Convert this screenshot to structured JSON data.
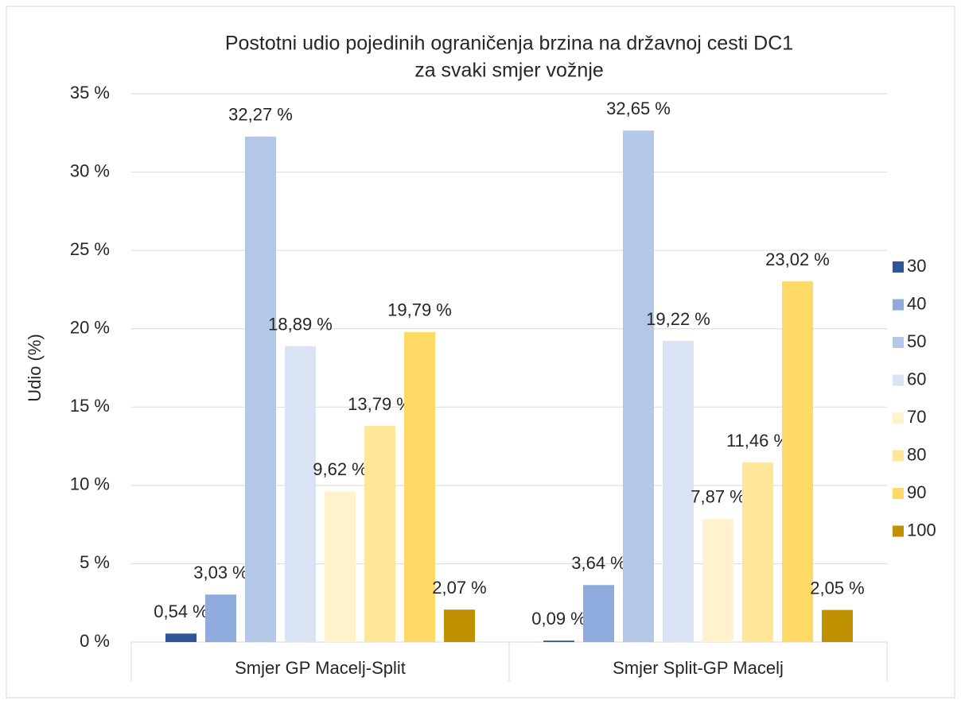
{
  "chart_data": {
    "type": "bar",
    "title": [
      "Postotni udio pojedinih ograničenja brzina na državnoj cesti DC1",
      "za svaki smjer vožnje"
    ],
    "y_label": "Udio (%)",
    "categories": [
      "Smjer GP Macelj-Split",
      "Smjer Split-GP Macelj"
    ],
    "series": [
      {
        "name": "30",
        "color": "#2f5597",
        "values": [
          0.54,
          0.09
        ],
        "value_labels": [
          "0,54 %",
          "0,09 %"
        ]
      },
      {
        "name": "40",
        "color": "#8faadc",
        "values": [
          3.03,
          3.64
        ],
        "value_labels": [
          "3,03 %",
          "3,64 %"
        ]
      },
      {
        "name": "50",
        "color": "#b4c7e7",
        "values": [
          32.27,
          32.65
        ],
        "value_labels": [
          "32,27 %",
          "32,65 %"
        ]
      },
      {
        "name": "60",
        "color": "#dae3f3",
        "values": [
          18.89,
          19.22
        ],
        "value_labels": [
          "18,89 %",
          "19,22 %"
        ]
      },
      {
        "name": "70",
        "color": "#fff2cc",
        "values": [
          9.62,
          7.87
        ],
        "value_labels": [
          "9,62 %",
          "7,87 %"
        ]
      },
      {
        "name": "80",
        "color": "#ffe699",
        "values": [
          13.79,
          11.46
        ],
        "value_labels": [
          "13,79 %",
          "11,46 %"
        ]
      },
      {
        "name": "90",
        "color": "#ffd966",
        "values": [
          19.79,
          23.02
        ],
        "value_labels": [
          "19,79 %",
          "23,02 %"
        ]
      },
      {
        "name": "100",
        "color": "#bf9000",
        "values": [
          2.07,
          2.05
        ],
        "value_labels": [
          "2,07 %",
          "2,05 %"
        ]
      }
    ],
    "ylim": [
      0,
      35
    ],
    "yticks": [
      {
        "value": 0,
        "label": "0 %"
      },
      {
        "value": 5,
        "label": "5 %"
      },
      {
        "value": 10,
        "label": "10 %"
      },
      {
        "value": 15,
        "label": "15 %"
      },
      {
        "value": 20,
        "label": "20 %"
      },
      {
        "value": 25,
        "label": "25 %"
      },
      {
        "value": 30,
        "label": "30 %"
      },
      {
        "value": 35,
        "label": "35 %"
      }
    ],
    "grid": true,
    "legend": "right"
  }
}
